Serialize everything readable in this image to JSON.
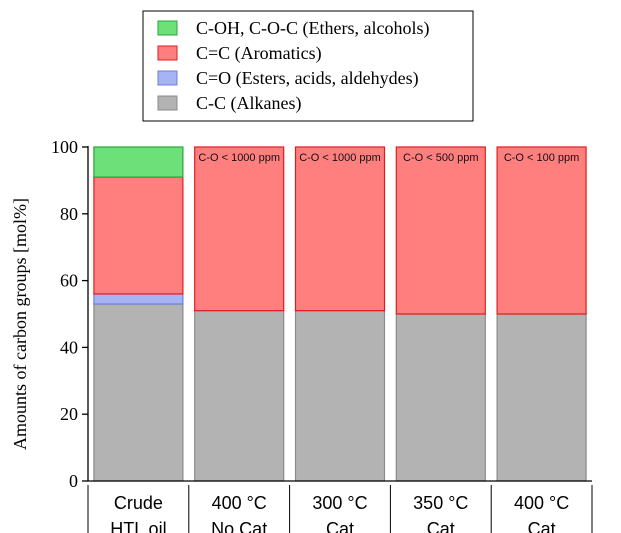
{
  "chart_data": {
    "type": "bar",
    "stacked": true,
    "categories": [
      [
        "Crude",
        "HTL oil"
      ],
      [
        "400 °C",
        "No Cat"
      ],
      [
        "300 °C",
        "Cat"
      ],
      [
        "350 °C",
        "Cat"
      ],
      [
        "400 °C",
        "Cat"
      ]
    ],
    "series": [
      {
        "name": "C-C (Alkanes)",
        "color": "#b3b3b3",
        "edge": "#8a8a8a",
        "values": [
          53,
          51,
          51,
          50,
          50
        ]
      },
      {
        "name": "C=O (Esters, acids, aldehydes)",
        "color": "#a6b3f5",
        "edge": "#6f7fd6",
        "values": [
          3,
          0,
          0,
          0,
          0
        ]
      },
      {
        "name": "C=C (Aromatics)",
        "color": "#ff7f7f",
        "edge": "#e01c1c",
        "values": [
          35,
          49,
          49,
          50,
          50
        ]
      },
      {
        "name": "C-OH, C-O-C (Ethers, alcohols)",
        "color": "#6ee07a",
        "edge": "#2aa63a",
        "values": [
          9,
          0,
          0,
          0,
          0
        ]
      }
    ],
    "legend_order": [
      3,
      2,
      1,
      0
    ],
    "legend_position": "top-center",
    "annotations": [
      "",
      "C-O < 1000 ppm",
      "C-O < 1000 ppm",
      "C-O < 500 ppm",
      "C-O < 100 ppm"
    ],
    "ylabel": "Amounts of carbon groups [mol%]",
    "xlabel": "",
    "ylim": [
      0,
      100
    ],
    "yticks": [
      0,
      20,
      40,
      60,
      80,
      100
    ],
    "grid": false
  }
}
